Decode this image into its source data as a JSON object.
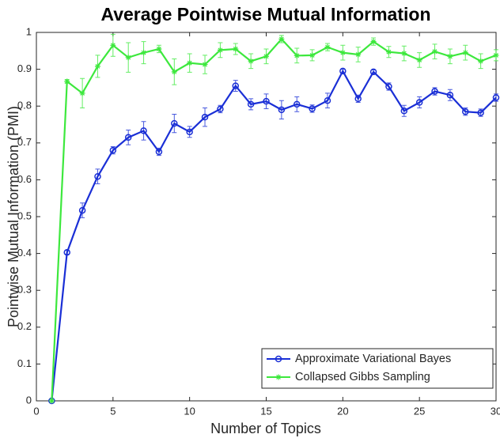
{
  "chart_data": {
    "type": "line",
    "title": "Average Pointwise Mutual Information",
    "x_label": "Number of Topics",
    "y_label": "Pointwise Mutual Information (PMI)",
    "x": [
      1,
      2,
      3,
      4,
      5,
      6,
      7,
      8,
      9,
      10,
      11,
      12,
      13,
      14,
      15,
      16,
      17,
      18,
      19,
      20,
      21,
      22,
      23,
      24,
      25,
      26,
      27,
      28,
      29,
      30
    ],
    "series": [
      {
        "name": "Approximate Variational Bayes",
        "color": "#1a2fd6",
        "marker": "circle",
        "values": [
          0,
          0.403,
          0.517,
          0.609,
          0.68,
          0.715,
          0.733,
          0.676,
          0.753,
          0.73,
          0.77,
          0.792,
          0.855,
          0.805,
          0.813,
          0.79,
          0.805,
          0.793,
          0.815,
          0.895,
          0.82,
          0.893,
          0.853,
          0.787,
          0.81,
          0.84,
          0.83,
          0.785,
          0.782,
          0.823
        ],
        "errors": [
          0,
          0.005,
          0.02,
          0.02,
          0.01,
          0.02,
          0.025,
          0.01,
          0.025,
          0.015,
          0.025,
          0.01,
          0.015,
          0.015,
          0.02,
          0.025,
          0.02,
          0.01,
          0.02,
          0.005,
          0.01,
          0.005,
          0.01,
          0.015,
          0.015,
          0.01,
          0.015,
          0.01,
          0.01,
          0.01
        ]
      },
      {
        "name": "Collapsed Gibbs Sampling",
        "color": "#3de83d",
        "marker": "star",
        "values": [
          0,
          0.867,
          0.835,
          0.908,
          0.965,
          0.932,
          0.945,
          0.955,
          0.893,
          0.917,
          0.913,
          0.952,
          0.955,
          0.922,
          0.935,
          0.982,
          0.937,
          0.938,
          0.96,
          0.945,
          0.94,
          0.975,
          0.947,
          0.943,
          0.925,
          0.948,
          0.935,
          0.945,
          0.922,
          0.938
        ],
        "errors": [
          0,
          0.005,
          0.04,
          0.03,
          0.03,
          0.04,
          0.03,
          0.01,
          0.035,
          0.025,
          0.025,
          0.02,
          0.015,
          0.02,
          0.02,
          0.01,
          0.02,
          0.015,
          0.01,
          0.02,
          0.02,
          0.01,
          0.015,
          0.02,
          0.02,
          0.02,
          0.02,
          0.02,
          0.02,
          0.015
        ]
      }
    ],
    "xlim": [
      0,
      30
    ],
    "xticks": [
      0,
      5,
      10,
      15,
      20,
      25,
      30
    ],
    "ylim": [
      0,
      1
    ],
    "yticks": [
      0,
      0.1,
      0.2,
      0.3,
      0.4,
      0.5,
      0.6,
      0.7,
      0.8,
      0.9,
      1
    ],
    "legend": "lower right"
  }
}
